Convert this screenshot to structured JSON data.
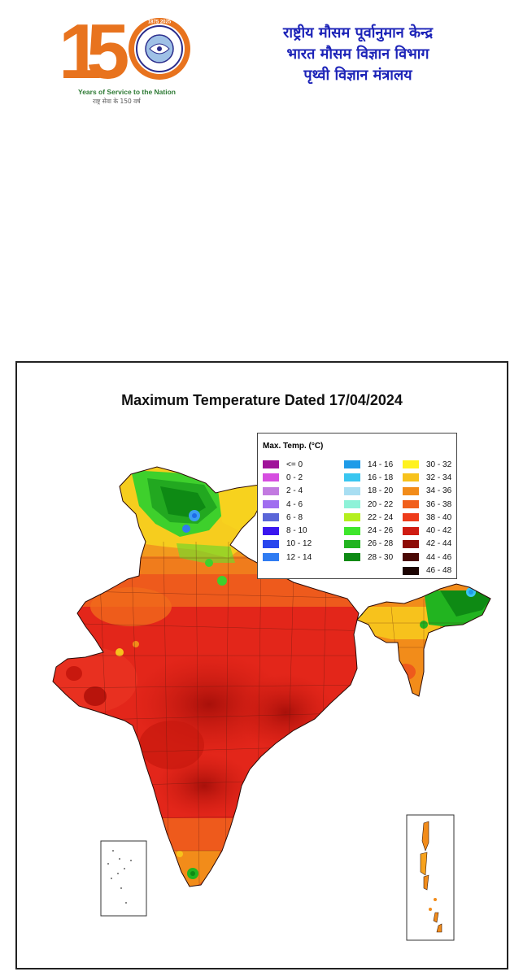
{
  "header": {
    "logo": {
      "digits": [
        "1",
        "5"
      ],
      "seal_years": "1875 2025",
      "tagline": "Years of Service to the Nation",
      "tagline_hi": "राष्ट्र सेवा के 150 वर्ष"
    },
    "org_lines": [
      "राष्ट्रीय मौसम पूर्वानुमान केन्द्र",
      "भारत मौसम विज्ञान विभाग",
      "पृथ्वी विज्ञान मंत्रालय"
    ]
  },
  "map": {
    "title": "Maximum Temperature Dated 17/04/2024",
    "legend": {
      "title": "Max. Temp. (°C)",
      "items": [
        {
          "label": "<= 0",
          "color": "#a0139a"
        },
        {
          "label": "0 - 2",
          "color": "#d64ee0"
        },
        {
          "label": "2 - 4",
          "color": "#c27ae0"
        },
        {
          "label": "4 - 6",
          "color": "#a06ef0"
        },
        {
          "label": "6 - 8",
          "color": "#5a66d8"
        },
        {
          "label": "8 - 10",
          "color": "#3a16ef"
        },
        {
          "label": "10 - 12",
          "color": "#2846ee"
        },
        {
          "label": "12 - 14",
          "color": "#2f7cf2"
        },
        {
          "label": "14 - 16",
          "color": "#1e9be8"
        },
        {
          "label": "16 - 18",
          "color": "#39c6f0"
        },
        {
          "label": "18 - 20",
          "color": "#a8def2"
        },
        {
          "label": "20 - 22",
          "color": "#8ef2d8"
        },
        {
          "label": "22 - 24",
          "color": "#b4ef1e"
        },
        {
          "label": "24 - 26",
          "color": "#3ee62c"
        },
        {
          "label": "26 - 28",
          "color": "#22b420"
        },
        {
          "label": "28 - 30",
          "color": "#0e8a14"
        },
        {
          "label": "30 - 32",
          "color": "#fff21e"
        },
        {
          "label": "32 - 34",
          "color": "#f7c21c"
        },
        {
          "label": "34 - 36",
          "color": "#f28c1a"
        },
        {
          "label": "36 - 38",
          "color": "#f1601c"
        },
        {
          "label": "38 - 40",
          "color": "#ee3b1a"
        },
        {
          "label": "40 - 42",
          "color": "#cf1c12"
        },
        {
          "label": "42 - 44",
          "color": "#8e0c06"
        },
        {
          "label": "44 - 46",
          "color": "#4a0804"
        },
        {
          "label": "46 - 48",
          "color": "#1c0402"
        }
      ]
    }
  }
}
